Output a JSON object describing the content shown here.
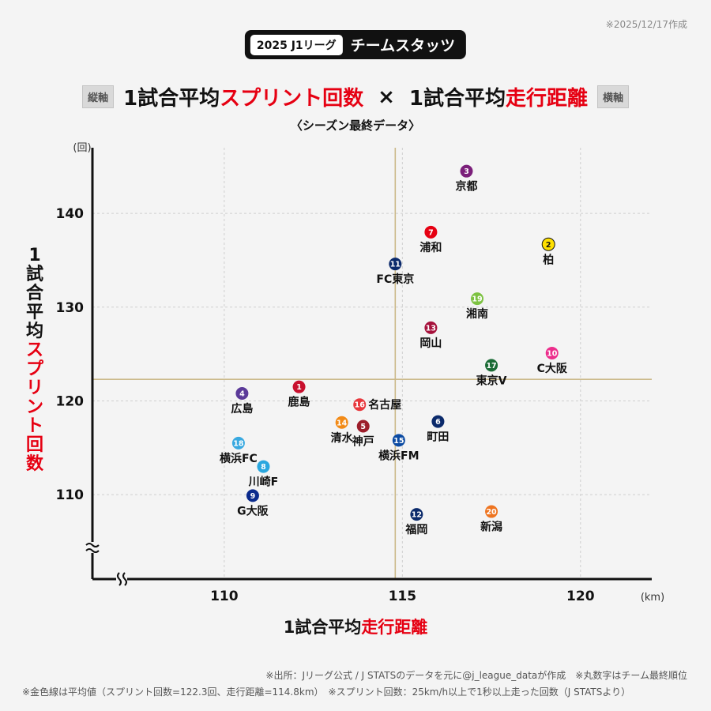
{
  "date_note": "※2025/12/17作成",
  "header": {
    "tag": "2025 J1リーグ",
    "label": "チームスタッツ"
  },
  "title": {
    "left_tag": "縦軸",
    "part1_black": "1試合平均",
    "part1_red": "スプリント回数",
    "cross": "×",
    "part2_black": "1試合平均",
    "part2_red": "走行距離",
    "right_tag": "横軸"
  },
  "subtitle": "〈シーズン最終データ〉",
  "footer": {
    "line1": "※出所：Jリーグ公式 / J STATSのデータを元に@j_league_dataが作成　※丸数字はチーム最終順位",
    "line2": "※金色線は平均値（スプリント回数=122.3回、走行距離=114.8km）　※スプリント回数：25km/h以上で1秒以上走った回数（J STATSより）"
  },
  "chart_data": {
    "type": "scatter",
    "xlabel_black": "1試合平均",
    "xlabel_red": "走行距離",
    "ylabel_black": [
      "1",
      "試",
      "合",
      "平",
      "均"
    ],
    "ylabel_red": [
      "ス",
      "プ",
      "リ",
      "ン",
      "ト",
      "回",
      "数"
    ],
    "x_unit": "(km)",
    "y_unit": "(回)",
    "xlim": [
      106.3,
      122
    ],
    "ylim": [
      101,
      147
    ],
    "x_ticks": [
      "110",
      "115",
      "120"
    ],
    "x_tick_values": [
      110,
      115,
      120
    ],
    "y_ticks": [
      "110",
      "120",
      "130",
      "140"
    ],
    "y_tick_values": [
      110,
      120,
      130,
      140
    ],
    "avg_x": 114.8,
    "avg_y": 122.3,
    "points": [
      {
        "rank": "1",
        "team": "鹿島",
        "x": 112.1,
        "y": 121.5,
        "color": "#c8102e",
        "text_color": "#ffffff",
        "label_pos": "below"
      },
      {
        "rank": "2",
        "team": "柏",
        "x": 119.1,
        "y": 136.7,
        "color": "#ffe000",
        "text_color": "#111111",
        "label_pos": "below"
      },
      {
        "rank": "3",
        "team": "京都",
        "x": 116.8,
        "y": 144.5,
        "color": "#7b1f7a",
        "text_color": "#ffffff",
        "label_pos": "below"
      },
      {
        "rank": "4",
        "team": "広島",
        "x": 110.5,
        "y": 120.8,
        "color": "#5b3a99",
        "text_color": "#ffffff",
        "label_pos": "below"
      },
      {
        "rank": "5",
        "team": "神戸",
        "x": 113.9,
        "y": 117.3,
        "color": "#9c1d2a",
        "text_color": "#ffffff",
        "label_pos": "below"
      },
      {
        "rank": "6",
        "team": "町田",
        "x": 116.0,
        "y": 117.8,
        "color": "#0b2a6b",
        "text_color": "#ffffff",
        "label_pos": "below"
      },
      {
        "rank": "7",
        "team": "浦和",
        "x": 115.8,
        "y": 138.0,
        "color": "#e60012",
        "text_color": "#ffffff",
        "label_pos": "below"
      },
      {
        "rank": "8",
        "team": "川崎F",
        "x": 111.1,
        "y": 113.0,
        "color": "#2aa7df",
        "text_color": "#ffffff",
        "label_pos": "below"
      },
      {
        "rank": "9",
        "team": "G大阪",
        "x": 110.8,
        "y": 109.9,
        "color": "#0a2a8c",
        "text_color": "#ffffff",
        "label_pos": "below"
      },
      {
        "rank": "10",
        "team": "C大阪",
        "x": 119.2,
        "y": 125.1,
        "color": "#ec2e8c",
        "text_color": "#ffffff",
        "label_pos": "below"
      },
      {
        "rank": "11",
        "team": "FC東京",
        "x": 114.8,
        "y": 134.6,
        "color": "#0b2a6b",
        "text_color": "#ffffff",
        "label_pos": "below"
      },
      {
        "rank": "12",
        "team": "福岡",
        "x": 115.4,
        "y": 107.9,
        "color": "#0b2a6b",
        "text_color": "#ffffff",
        "label_pos": "below"
      },
      {
        "rank": "13",
        "team": "岡山",
        "x": 115.8,
        "y": 127.8,
        "color": "#a6123c",
        "text_color": "#ffffff",
        "label_pos": "below"
      },
      {
        "rank": "14",
        "team": "清水",
        "x": 113.3,
        "y": 117.7,
        "color": "#f28a16",
        "text_color": "#ffffff",
        "label_pos": "below"
      },
      {
        "rank": "15",
        "team": "横浜FM",
        "x": 114.9,
        "y": 115.8,
        "color": "#0b4aa2",
        "text_color": "#ffffff",
        "label_pos": "below"
      },
      {
        "rank": "16",
        "team": "名古屋",
        "x": 113.8,
        "y": 119.6,
        "color": "#e8383d",
        "text_color": "#ffffff",
        "label_pos": "right"
      },
      {
        "rank": "17",
        "team": "東京V",
        "x": 117.5,
        "y": 123.8,
        "color": "#1a6b35",
        "text_color": "#ffffff",
        "label_pos": "below"
      },
      {
        "rank": "18",
        "team": "横浜FC",
        "x": 110.4,
        "y": 115.5,
        "color": "#39a9e0",
        "text_color": "#ffffff",
        "label_pos": "below"
      },
      {
        "rank": "19",
        "team": "湘南",
        "x": 117.1,
        "y": 130.9,
        "color": "#7dc242",
        "text_color": "#ffffff",
        "label_pos": "below"
      },
      {
        "rank": "20",
        "team": "新潟",
        "x": 117.5,
        "y": 108.2,
        "color": "#ee7420",
        "text_color": "#ffffff",
        "label_pos": "below"
      }
    ]
  }
}
